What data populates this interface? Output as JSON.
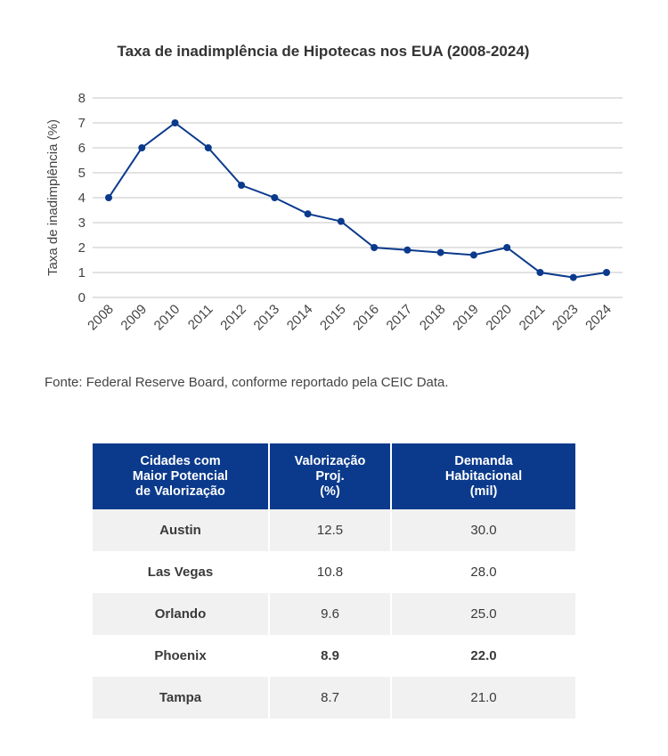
{
  "chart_data": {
    "type": "line",
    "title": "Taxa de inadimplência de Hipotecas nos EUA (2008-2024)",
    "xlabel": "",
    "ylabel": "Taxa de inadimplência (%)",
    "categories": [
      "2008",
      "2009",
      "2010",
      "2011",
      "2012",
      "2013",
      "2014",
      "2015",
      "2016",
      "2017",
      "2018",
      "2019",
      "2020",
      "2021",
      "2023",
      "2024"
    ],
    "series": [
      {
        "name": "Taxa de inadimplência (%)",
        "values": [
          4.0,
          6.0,
          7.0,
          6.0,
          4.5,
          4.0,
          3.35,
          3.05,
          2.0,
          1.9,
          1.8,
          1.7,
          2.0,
          1.0,
          0.8,
          1.0
        ],
        "color": "#0b3a8c"
      }
    ],
    "ylim": [
      0,
      8
    ],
    "yticks": [
      "0",
      "1",
      "2",
      "3",
      "4",
      "5",
      "6",
      "7",
      "8"
    ],
    "grid": true,
    "legend": "none"
  },
  "source": "Fonte: Federal Reserve Board, conforme reportado  pela CEIC Data.",
  "table": {
    "headers": [
      [
        "Cidades com",
        "Maior Potencial",
        "de Valorização"
      ],
      [
        "Valorização",
        "Proj.",
        "(%)"
      ],
      [
        "Demanda",
        "Habitacional",
        "(mil)"
      ]
    ],
    "rows": [
      {
        "city": "Austin",
        "valorizacao": "12.5",
        "demanda": "30.0"
      },
      {
        "city": "Las Vegas",
        "valorizacao": "10.8",
        "demanda": "28.0"
      },
      {
        "city": "Orlando",
        "valorizacao": "9.6",
        "demanda": "25.0"
      },
      {
        "city": "Phoenix",
        "valorizacao": "8.9",
        "demanda": "22.0"
      },
      {
        "city": "Tampa",
        "valorizacao": "8.7",
        "demanda": "21.0"
      }
    ],
    "header_color": "#0b3a8c"
  }
}
